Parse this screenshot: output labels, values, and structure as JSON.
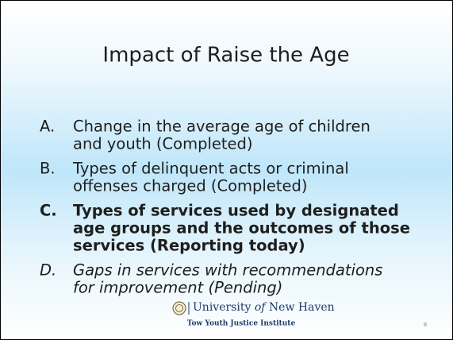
{
  "slide": {
    "title": "Impact of Raise the Age",
    "items": [
      {
        "marker": "A.",
        "lines": [
          "Change in the average age of children",
          "and youth (Completed)"
        ],
        "style": "normal"
      },
      {
        "marker": "B.",
        "lines": [
          "Types of delinquent acts or criminal",
          "offenses charged (Completed)"
        ],
        "style": "normal"
      },
      {
        "marker": "C.",
        "lines": [
          "Types of services used by designated",
          "age groups and the outcomes of those",
          "services (Reporting today)"
        ],
        "style": "bold"
      },
      {
        "marker": "D.",
        "lines": [
          "Gaps in services with recommendations",
          "for improvement (Pending)"
        ],
        "style": "italic"
      }
    ],
    "footer": {
      "university": [
        "University",
        "of",
        "New Haven"
      ],
      "institute": "Tow Youth Justice Institute"
    },
    "page_number": "8"
  }
}
